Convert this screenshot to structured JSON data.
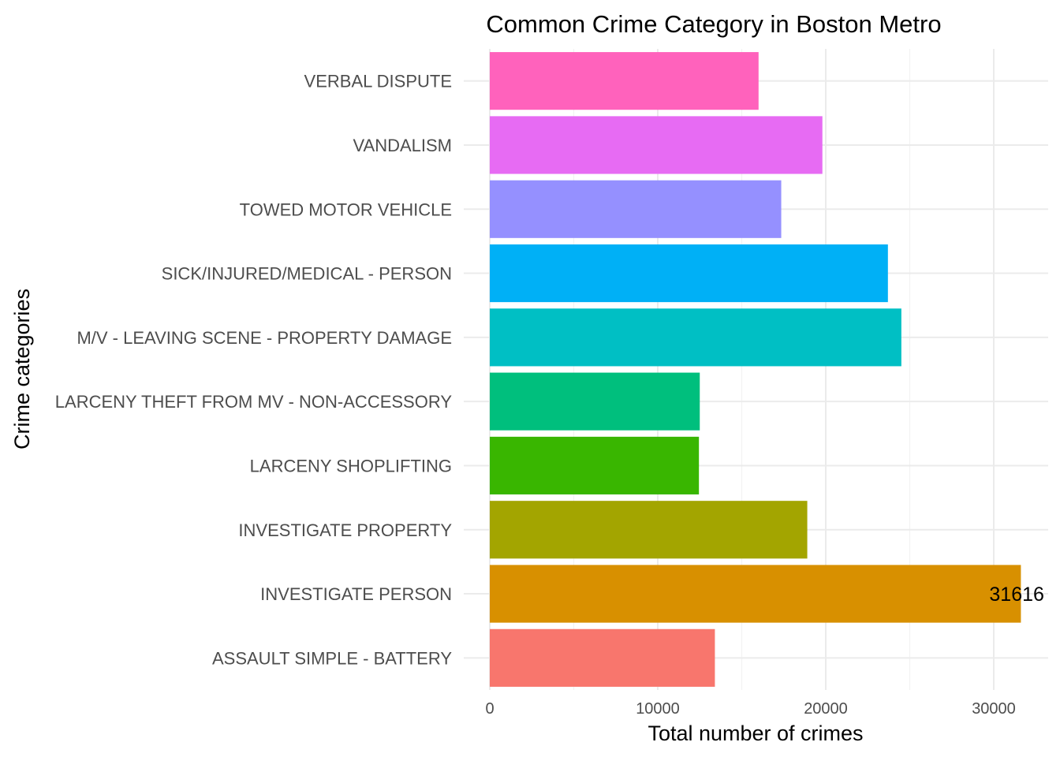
{
  "chart_data": {
    "type": "bar",
    "orientation": "horizontal",
    "title": "Common Crime Category in Boston Metro",
    "xlabel": "Total number of crimes",
    "ylabel": "Crime categories",
    "xlim": [
      0,
      32000
    ],
    "x_ticks": [
      0,
      10000,
      20000,
      30000
    ],
    "x_tick_labels": [
      "0",
      "10000",
      "20000",
      "30000"
    ],
    "grid": true,
    "legend": "none",
    "categories": [
      "ASSAULT SIMPLE - BATTERY",
      "INVESTIGATE PERSON",
      "INVESTIGATE PROPERTY",
      "LARCENY SHOPLIFTING",
      "LARCENY THEFT FROM MV - NON-ACCESSORY",
      "M/V - LEAVING SCENE - PROPERTY DAMAGE",
      "SICK/INJURED/MEDICAL - PERSON",
      "TOWED MOTOR VEHICLE",
      "VANDALISM",
      "VERBAL DISPUTE"
    ],
    "values": [
      13400,
      31616,
      18900,
      12450,
      12500,
      24500,
      23700,
      17350,
      19800,
      16000
    ],
    "colors": [
      "#F8766D",
      "#D89000",
      "#A3A500",
      "#39B600",
      "#00BF7D",
      "#00BFC4",
      "#00B0F6",
      "#9590FF",
      "#E76BF3",
      "#FF62BC"
    ],
    "annotations": [
      {
        "category": "INVESTIGATE PERSON",
        "text": "31616"
      }
    ]
  }
}
